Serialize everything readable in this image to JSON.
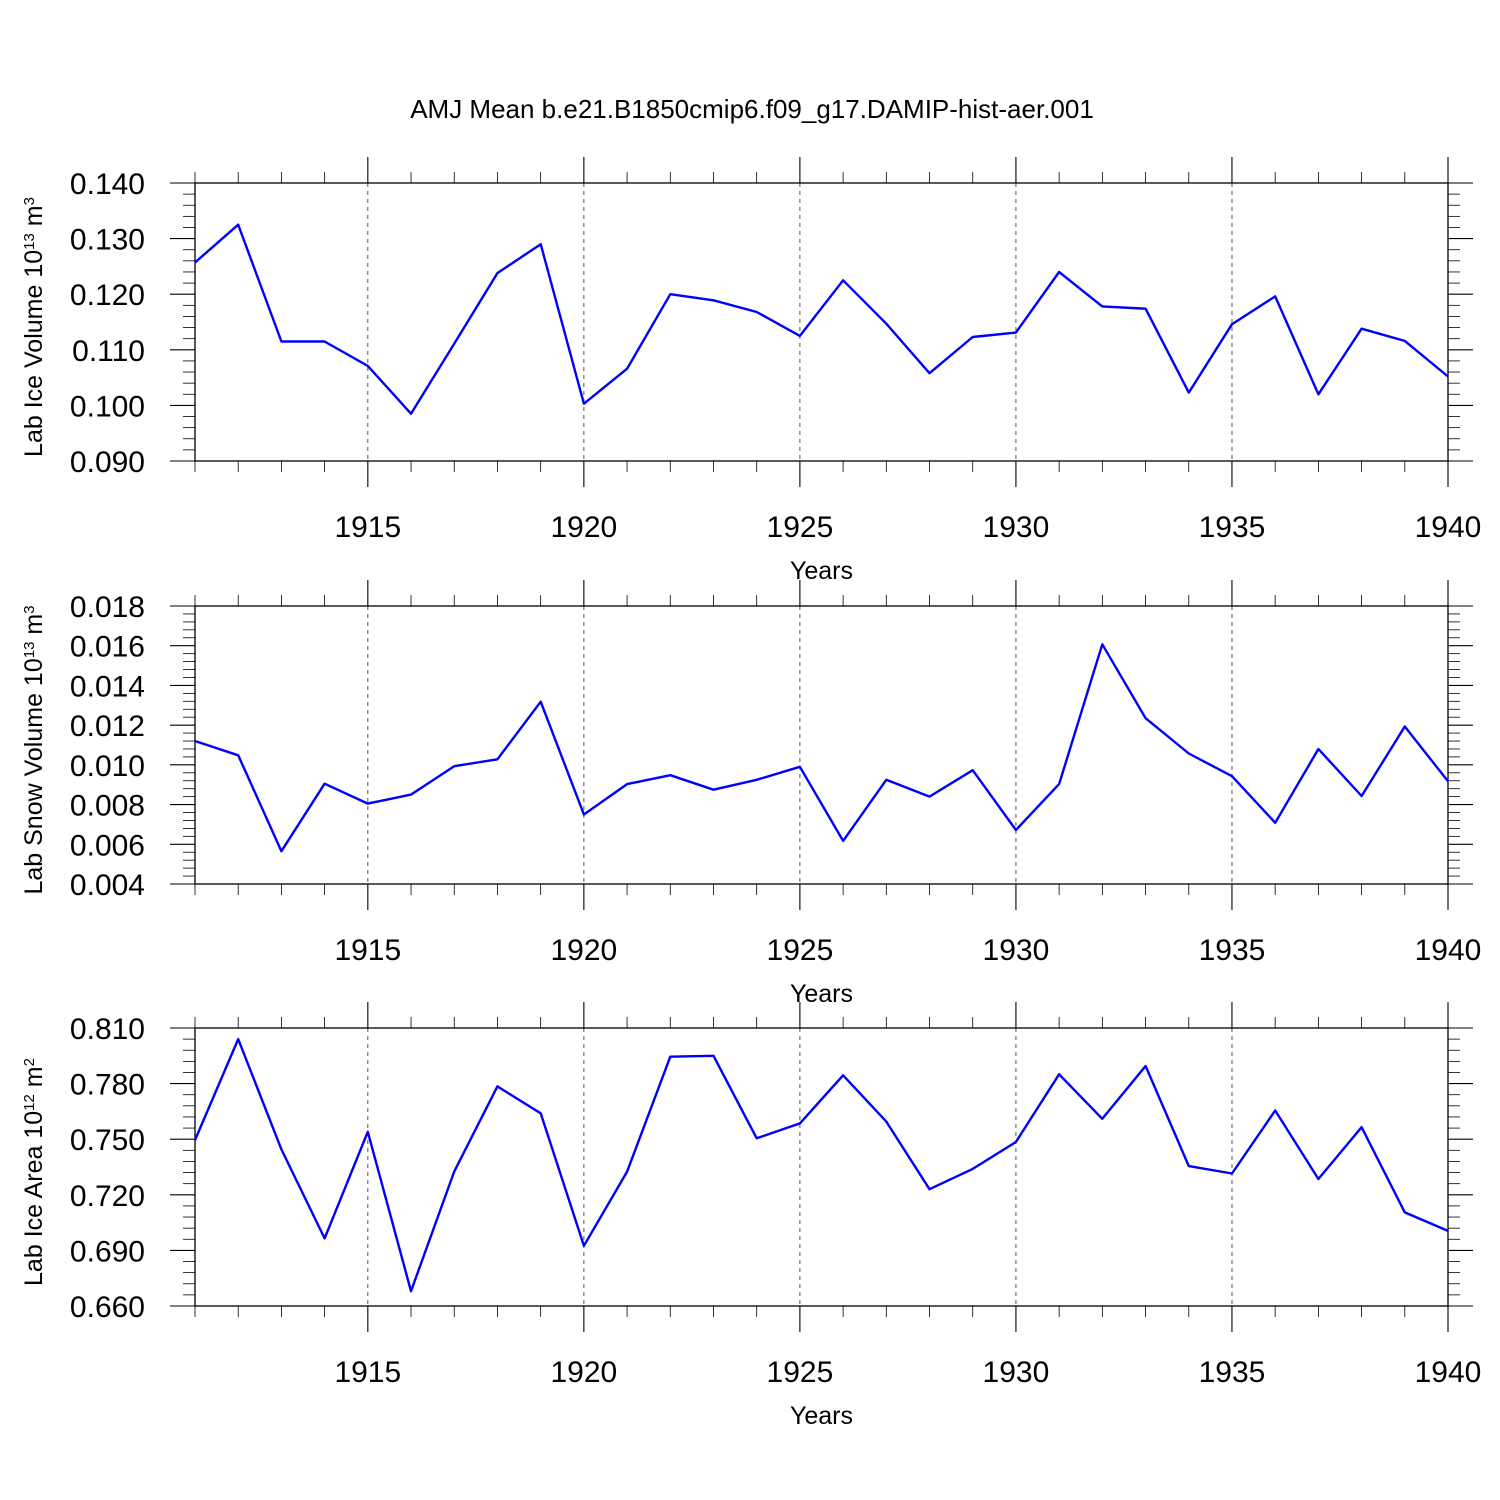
{
  "title": "AMJ Mean b.e21.B1850cmip6.f09_g17.DAMIP-hist-aer.001",
  "colors": {
    "series": "#0000ff",
    "axis": "#000000",
    "grid": "#555555"
  },
  "chart_data": [
    {
      "type": "line",
      "ylabel_prefix": "Lab Ice Volume 10",
      "ylabel_exponent": "13",
      "ylabel_suffix": " m",
      "ylabel_unit_power": "3",
      "xlabel": "Years",
      "x": [
        1911,
        1912,
        1913,
        1914,
        1915,
        1916,
        1917,
        1918,
        1919,
        1920,
        1921,
        1922,
        1923,
        1924,
        1925,
        1926,
        1927,
        1928,
        1929,
        1930,
        1931,
        1932,
        1933,
        1934,
        1935,
        1936,
        1937,
        1938,
        1939,
        1940
      ],
      "values": [
        0.1257,
        0.1325,
        0.1115,
        0.1115,
        0.1071,
        0.0985,
        0.1111,
        0.1238,
        0.129,
        0.1003,
        0.1066,
        0.12,
        0.1189,
        0.1168,
        0.1125,
        0.1225,
        0.1147,
        0.1058,
        0.1123,
        0.1131,
        0.124,
        0.1178,
        0.1174,
        0.1023,
        0.1146,
        0.1196,
        0.102,
        0.1138,
        0.1116,
        0.1052
      ],
      "ylim": [
        0.09,
        0.14
      ],
      "yticks": [
        0.09,
        0.1,
        0.11,
        0.12,
        0.13,
        0.14
      ],
      "ytick_labels": [
        "0.090",
        "0.100",
        "0.110",
        "0.120",
        "0.130",
        "0.140"
      ],
      "xlim": [
        1911,
        1940
      ],
      "xticks": [
        1915,
        1920,
        1925,
        1930,
        1935,
        1940
      ],
      "xtick_labels": [
        "1915",
        "1920",
        "1925",
        "1930",
        "1935",
        "1940"
      ]
    },
    {
      "type": "line",
      "ylabel_prefix": "Lab Snow Volume 10",
      "ylabel_exponent": "13",
      "ylabel_suffix": " m",
      "ylabel_unit_power": "3",
      "xlabel": "Years",
      "x": [
        1911,
        1912,
        1913,
        1914,
        1915,
        1916,
        1917,
        1918,
        1919,
        1920,
        1921,
        1922,
        1923,
        1924,
        1925,
        1926,
        1927,
        1928,
        1929,
        1930,
        1931,
        1932,
        1933,
        1934,
        1935,
        1936,
        1937,
        1938,
        1939,
        1940
      ],
      "values": [
        0.0112,
        0.01048,
        0.00565,
        0.00905,
        0.00805,
        0.0085,
        0.00993,
        0.01028,
        0.01318,
        0.0075,
        0.00903,
        0.00948,
        0.00875,
        0.00925,
        0.0099,
        0.00617,
        0.00925,
        0.0084,
        0.00973,
        0.00672,
        0.00903,
        0.01607,
        0.01235,
        0.01057,
        0.00943,
        0.00708,
        0.0108,
        0.00843,
        0.01193,
        0.00917
      ],
      "ylim": [
        0.004,
        0.018
      ],
      "yticks": [
        0.004,
        0.006,
        0.008,
        0.01,
        0.012,
        0.014,
        0.016,
        0.018
      ],
      "ytick_labels": [
        "0.004",
        "0.006",
        "0.008",
        "0.010",
        "0.012",
        "0.014",
        "0.016",
        "0.018"
      ],
      "xlim": [
        1911,
        1940
      ],
      "xticks": [
        1915,
        1920,
        1925,
        1930,
        1935,
        1940
      ],
      "xtick_labels": [
        "1915",
        "1920",
        "1925",
        "1930",
        "1935",
        "1940"
      ]
    },
    {
      "type": "line",
      "ylabel_prefix": "Lab Ice Area 10",
      "ylabel_exponent": "12",
      "ylabel_suffix": " m",
      "ylabel_unit_power": "2",
      "xlabel": "Years",
      "x": [
        1911,
        1912,
        1913,
        1914,
        1915,
        1916,
        1917,
        1918,
        1919,
        1920,
        1921,
        1922,
        1923,
        1924,
        1925,
        1926,
        1927,
        1928,
        1929,
        1930,
        1931,
        1932,
        1933,
        1934,
        1935,
        1936,
        1937,
        1938,
        1939,
        1940
      ],
      "values": [
        0.7495,
        0.804,
        0.7445,
        0.6965,
        0.754,
        0.668,
        0.7325,
        0.7785,
        0.764,
        0.6925,
        0.7325,
        0.7945,
        0.795,
        0.7505,
        0.7585,
        0.7845,
        0.7595,
        0.723,
        0.734,
        0.7485,
        0.785,
        0.761,
        0.7895,
        0.7355,
        0.7315,
        0.7655,
        0.7285,
        0.7565,
        0.7105,
        0.7005
      ],
      "ylim": [
        0.66,
        0.81
      ],
      "yticks": [
        0.66,
        0.69,
        0.72,
        0.75,
        0.78,
        0.81
      ],
      "ytick_labels": [
        "0.660",
        "0.690",
        "0.720",
        "0.750",
        "0.780",
        "0.810"
      ],
      "xlim": [
        1911,
        1940
      ],
      "xticks": [
        1915,
        1920,
        1925,
        1930,
        1935,
        1940
      ],
      "xtick_labels": [
        "1915",
        "1920",
        "1925",
        "1930",
        "1935",
        "1940"
      ]
    }
  ]
}
